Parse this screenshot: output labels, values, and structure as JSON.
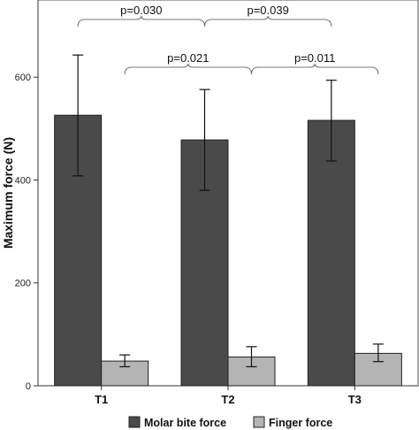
{
  "chart_data": {
    "type": "bar",
    "ylabel": "Maximum force (N)",
    "xlabel": "",
    "ylim": [
      0,
      750
    ],
    "yticks": [
      0,
      200,
      400,
      600
    ],
    "grid": false,
    "legend_position": "bottom",
    "categories": [
      "T1",
      "T2",
      "T3"
    ],
    "series": [
      {
        "name": "Molar bite force",
        "color": "#4a4a4a",
        "values": [
          526,
          478,
          516
        ],
        "error_low": [
          408,
          380,
          437
        ],
        "error_high": [
          643,
          576,
          594
        ]
      },
      {
        "name": "Finger force",
        "color": "#b4b4b4",
        "values": [
          48,
          56,
          63
        ],
        "error_low": [
          37,
          37,
          47
        ],
        "error_high": [
          60,
          76,
          81
        ]
      }
    ],
    "annotations": [
      {
        "text": "p=0.030",
        "from": 0,
        "to": 1,
        "series": 0
      },
      {
        "text": "p=0.039",
        "from": 1,
        "to": 2,
        "series": 0
      },
      {
        "text": "p=0.021",
        "from": 0,
        "to": 1,
        "series": 1
      },
      {
        "text": "p=0.011",
        "from": 1,
        "to": 2,
        "series": 1
      }
    ]
  }
}
